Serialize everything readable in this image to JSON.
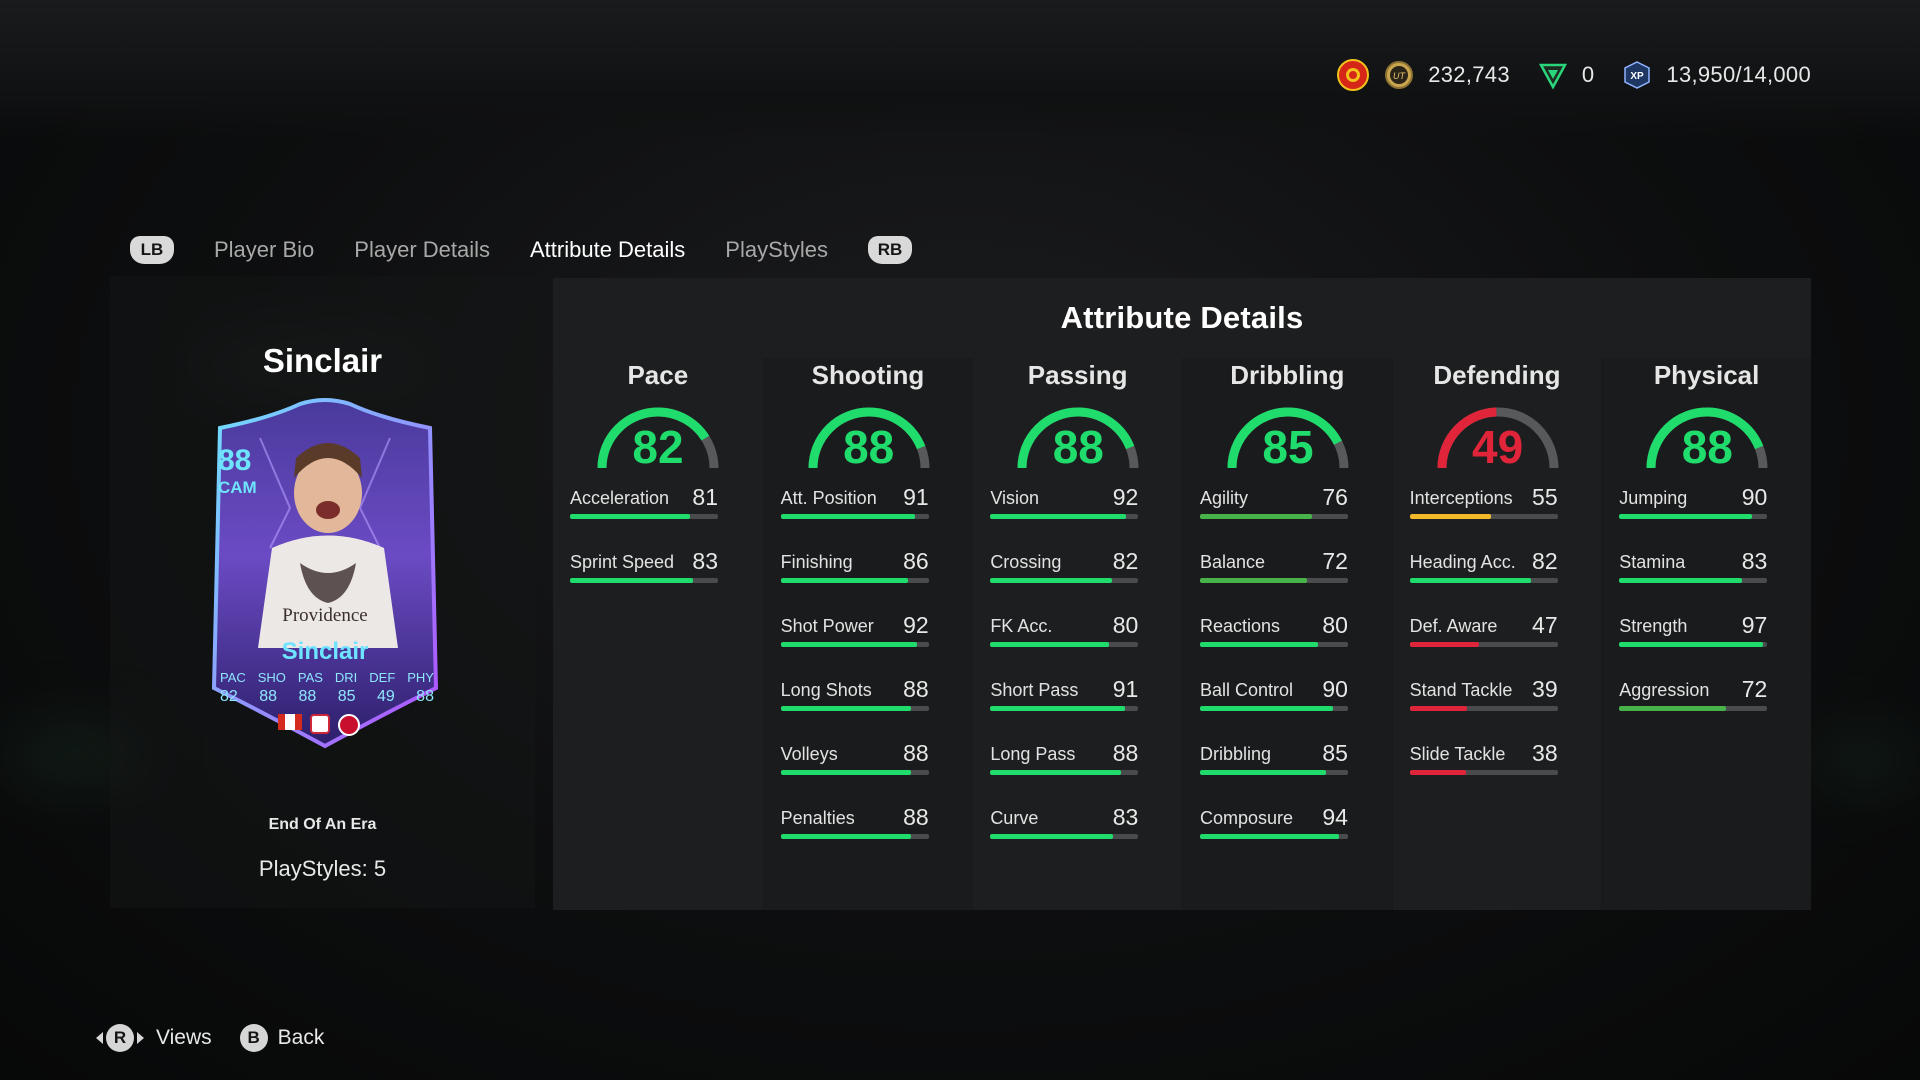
{
  "topbar": {
    "coins": "232,743",
    "points": "0",
    "xp": "13,950/14,000",
    "club_icon": "club-crest-icon",
    "coins_icon": "coins-icon",
    "points_icon": "fc-points-icon",
    "xp_icon": "xp-icon"
  },
  "tabs": {
    "lb": "LB",
    "rb": "RB",
    "items": [
      "Player Bio",
      "Player Details",
      "Attribute Details",
      "PlayStyles"
    ],
    "active": "Attribute Details"
  },
  "player": {
    "name": "Sinclair",
    "card": {
      "rating": "88",
      "position": "CAM",
      "name": "Sinclair",
      "shirt_text": "Providence",
      "stat_labels": [
        "PAC",
        "SHO",
        "PAS",
        "DRI",
        "DEF",
        "PHY"
      ],
      "stat_values": [
        "82",
        "88",
        "88",
        "85",
        "49",
        "88"
      ]
    },
    "card_caption": "End Of An Era",
    "playstyles": "PlayStyles: 5"
  },
  "attributes": {
    "title": "Attribute Details",
    "colors": {
      "green": "#1fdc6c",
      "mid_green": "#47b34a",
      "yellow": "#f4b92b",
      "red": "#e0253a",
      "track": "#4a4b4c"
    },
    "categories": [
      {
        "name": "Pace",
        "value": "82",
        "stats": [
          {
            "name": "Acceleration",
            "value": "81"
          },
          {
            "name": "Sprint Speed",
            "value": "83"
          }
        ]
      },
      {
        "name": "Shooting",
        "value": "88",
        "stats": [
          {
            "name": "Att. Position",
            "value": "91"
          },
          {
            "name": "Finishing",
            "value": "86"
          },
          {
            "name": "Shot Power",
            "value": "92"
          },
          {
            "name": "Long Shots",
            "value": "88"
          },
          {
            "name": "Volleys",
            "value": "88"
          },
          {
            "name": "Penalties",
            "value": "88"
          }
        ]
      },
      {
        "name": "Passing",
        "value": "88",
        "stats": [
          {
            "name": "Vision",
            "value": "92"
          },
          {
            "name": "Crossing",
            "value": "82"
          },
          {
            "name": "FK Acc.",
            "value": "80"
          },
          {
            "name": "Short Pass",
            "value": "91"
          },
          {
            "name": "Long Pass",
            "value": "88"
          },
          {
            "name": "Curve",
            "value": "83"
          }
        ]
      },
      {
        "name": "Dribbling",
        "value": "85",
        "stats": [
          {
            "name": "Agility",
            "value": "76"
          },
          {
            "name": "Balance",
            "value": "72"
          },
          {
            "name": "Reactions",
            "value": "80"
          },
          {
            "name": "Ball Control",
            "value": "90"
          },
          {
            "name": "Dribbling",
            "value": "85"
          },
          {
            "name": "Composure",
            "value": "94"
          }
        ]
      },
      {
        "name": "Defending",
        "value": "49",
        "stats": [
          {
            "name": "Interceptions",
            "value": "55"
          },
          {
            "name": "Heading Acc.",
            "value": "82"
          },
          {
            "name": "Def. Aware",
            "value": "47"
          },
          {
            "name": "Stand Tackle",
            "value": "39"
          },
          {
            "name": "Slide Tackle",
            "value": "38"
          }
        ]
      },
      {
        "name": "Physical",
        "value": "88",
        "stats": [
          {
            "name": "Jumping",
            "value": "90"
          },
          {
            "name": "Stamina",
            "value": "83"
          },
          {
            "name": "Strength",
            "value": "97"
          },
          {
            "name": "Aggression",
            "value": "72"
          }
        ]
      }
    ]
  },
  "hints": {
    "views_button": "R",
    "views_label": "Views",
    "back_button": "B",
    "back_label": "Back"
  }
}
